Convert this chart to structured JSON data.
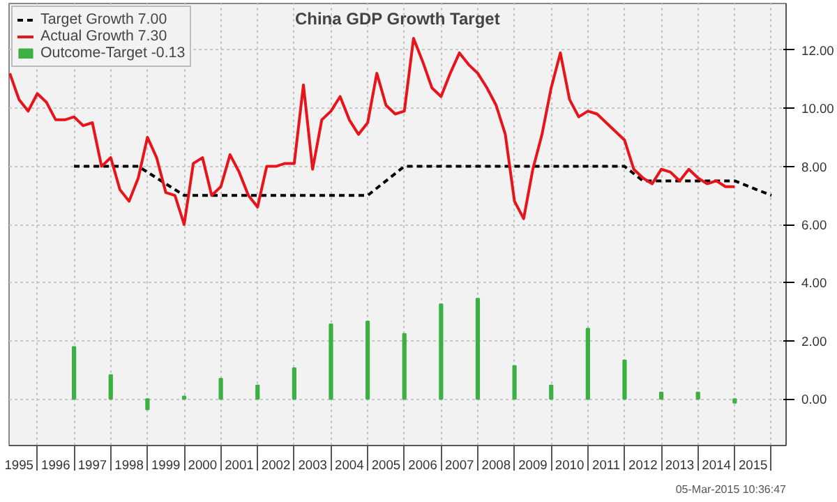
{
  "chart_data": {
    "type": "line",
    "title": "China GDP Growth Target",
    "annotations": [
      "05-Mar-2015 10:36:47"
    ],
    "xlim": [
      1995.23,
      2016.4
    ],
    "xticks": [
      {
        "value": 1995.5,
        "label": "1995"
      },
      {
        "value": 1996.5,
        "label": "1996"
      },
      {
        "value": 1997.5,
        "label": "1997"
      },
      {
        "value": 1998.5,
        "label": "1998"
      },
      {
        "value": 1999.5,
        "label": "1999"
      },
      {
        "value": 2000.5,
        "label": "2000"
      },
      {
        "value": 2001.5,
        "label": "2001"
      },
      {
        "value": 2002.5,
        "label": "2002"
      },
      {
        "value": 2003.5,
        "label": "2003"
      },
      {
        "value": 2004.5,
        "label": "2004"
      },
      {
        "value": 2005.5,
        "label": "2005"
      },
      {
        "value": 2006.5,
        "label": "2006"
      },
      {
        "value": 2007.5,
        "label": "2007"
      },
      {
        "value": 2008.5,
        "label": "2008"
      },
      {
        "value": 2009.5,
        "label": "2009"
      },
      {
        "value": 2010.5,
        "label": "2010"
      },
      {
        "value": 2011.5,
        "label": "2011"
      },
      {
        "value": 2012.5,
        "label": "2012"
      },
      {
        "value": 2013.5,
        "label": "2013"
      },
      {
        "value": 2014.5,
        "label": "2014"
      },
      {
        "value": 2015.5,
        "label": "2015"
      },
      {
        "value": 1996,
        "label": null
      },
      {
        "value": 1997,
        "label": null
      },
      {
        "value": 1998,
        "label": null
      },
      {
        "value": 1999,
        "label": null
      },
      {
        "value": 2000,
        "label": null
      },
      {
        "value": 2001,
        "label": null
      },
      {
        "value": 2002,
        "label": null
      },
      {
        "value": 2003,
        "label": null
      },
      {
        "value": 2004,
        "label": null
      },
      {
        "value": 2005,
        "label": null
      },
      {
        "value": 2006,
        "label": null
      },
      {
        "value": 2007,
        "label": null
      },
      {
        "value": 2008,
        "label": null
      },
      {
        "value": 2009,
        "label": null
      },
      {
        "value": 2010,
        "label": null
      },
      {
        "value": 2011,
        "label": null
      },
      {
        "value": 2012,
        "label": null
      },
      {
        "value": 2013,
        "label": null
      },
      {
        "value": 2014,
        "label": null
      },
      {
        "value": 2015,
        "label": null
      },
      {
        "value": 2016,
        "label": null
      }
    ],
    "ylim": [
      -1.6,
      13.6
    ],
    "yticks": [
      {
        "value": 0,
        "label": "0.00"
      },
      {
        "value": 2,
        "label": "2.00"
      },
      {
        "value": 4,
        "label": "4.00"
      },
      {
        "value": 6,
        "label": "6.00"
      },
      {
        "value": 8,
        "label": "8.00"
      },
      {
        "value": 10,
        "label": "10.00"
      },
      {
        "value": 12,
        "label": "12.00"
      }
    ],
    "grid": true,
    "legend": "top left",
    "series": [
      {
        "name": "Target Growth 7.00",
        "color": "#000000",
        "line_style": "dashed",
        "x": [
          1997,
          1998.75,
          2000,
          2005,
          2006,
          2012,
          2012.5,
          2015,
          2016
        ],
        "values": [
          8,
          8,
          7,
          7,
          8,
          8,
          7.5,
          7.5,
          7
        ]
      },
      {
        "name": "Actual Growth 7.30",
        "color": "#e8141b",
        "line_style": "solid",
        "x": [
          1995.25,
          1995.5,
          1995.75,
          1996,
          1996.25,
          1996.5,
          1996.75,
          1997,
          1997.25,
          1997.5,
          1997.75,
          1998,
          1998.25,
          1998.5,
          1998.75,
          1999,
          1999.25,
          1999.5,
          1999.75,
          2000,
          2000.25,
          2000.5,
          2000.75,
          2001,
          2001.25,
          2001.5,
          2001.75,
          2002,
          2002.25,
          2002.5,
          2002.75,
          2003,
          2003.25,
          2003.5,
          2003.75,
          2004,
          2004.25,
          2004.5,
          2004.75,
          2005,
          2005.25,
          2005.5,
          2005.75,
          2006,
          2006.25,
          2006.5,
          2006.75,
          2007,
          2007.25,
          2007.5,
          2007.75,
          2008,
          2008.25,
          2008.5,
          2008.75,
          2009,
          2009.25,
          2009.5,
          2009.75,
          2010,
          2010.25,
          2010.5,
          2010.75,
          2011,
          2011.25,
          2011.5,
          2011.75,
          2012,
          2012.25,
          2012.5,
          2012.75,
          2013,
          2013.25,
          2013.5,
          2013.75,
          2014,
          2014.25,
          2014.5,
          2014.75,
          2015
        ],
        "values": [
          11.2,
          10.3,
          9.9,
          10.5,
          10.2,
          9.6,
          9.6,
          9.7,
          9.4,
          9.5,
          8.0,
          8.3,
          7.2,
          6.8,
          7.6,
          9.0,
          8.3,
          7.1,
          7.0,
          6.0,
          8.1,
          8.3,
          7.0,
          7.3,
          8.4,
          7.8,
          7.0,
          6.6,
          8.0,
          8.0,
          8.1,
          8.1,
          10.8,
          7.9,
          9.6,
          9.9,
          10.4,
          9.6,
          9.1,
          9.5,
          11.2,
          10.1,
          9.8,
          9.9,
          12.4,
          11.6,
          10.7,
          10.4,
          11.2,
          11.9,
          11.5,
          11.2,
          10.7,
          10.1,
          9.1,
          6.8,
          6.2,
          7.9,
          9.1,
          10.7,
          11.9,
          10.3,
          9.7,
          9.9,
          9.8,
          9.5,
          9.2,
          8.9,
          7.9,
          7.6,
          7.4,
          7.9,
          7.8,
          7.5,
          7.9,
          7.6,
          7.4,
          7.5,
          7.3,
          7.3
        ]
      },
      {
        "name": "Outcome-Target -0.13",
        "type": "bar",
        "color": "#3cb043",
        "x": [
          1997,
          1998,
          1999,
          2000,
          2001,
          2002,
          2003,
          2004,
          2005,
          2006,
          2007,
          2008,
          2009,
          2010,
          2011,
          2012,
          2013,
          2014,
          2015
        ],
        "values": [
          1.79,
          0.83,
          -0.36,
          0.09,
          0.7,
          0.47,
          1.06,
          2.57,
          2.67,
          2.24,
          3.26,
          3.45,
          1.14,
          0.47,
          2.42,
          1.33,
          0.23,
          0.23,
          -0.13
        ]
      }
    ]
  }
}
